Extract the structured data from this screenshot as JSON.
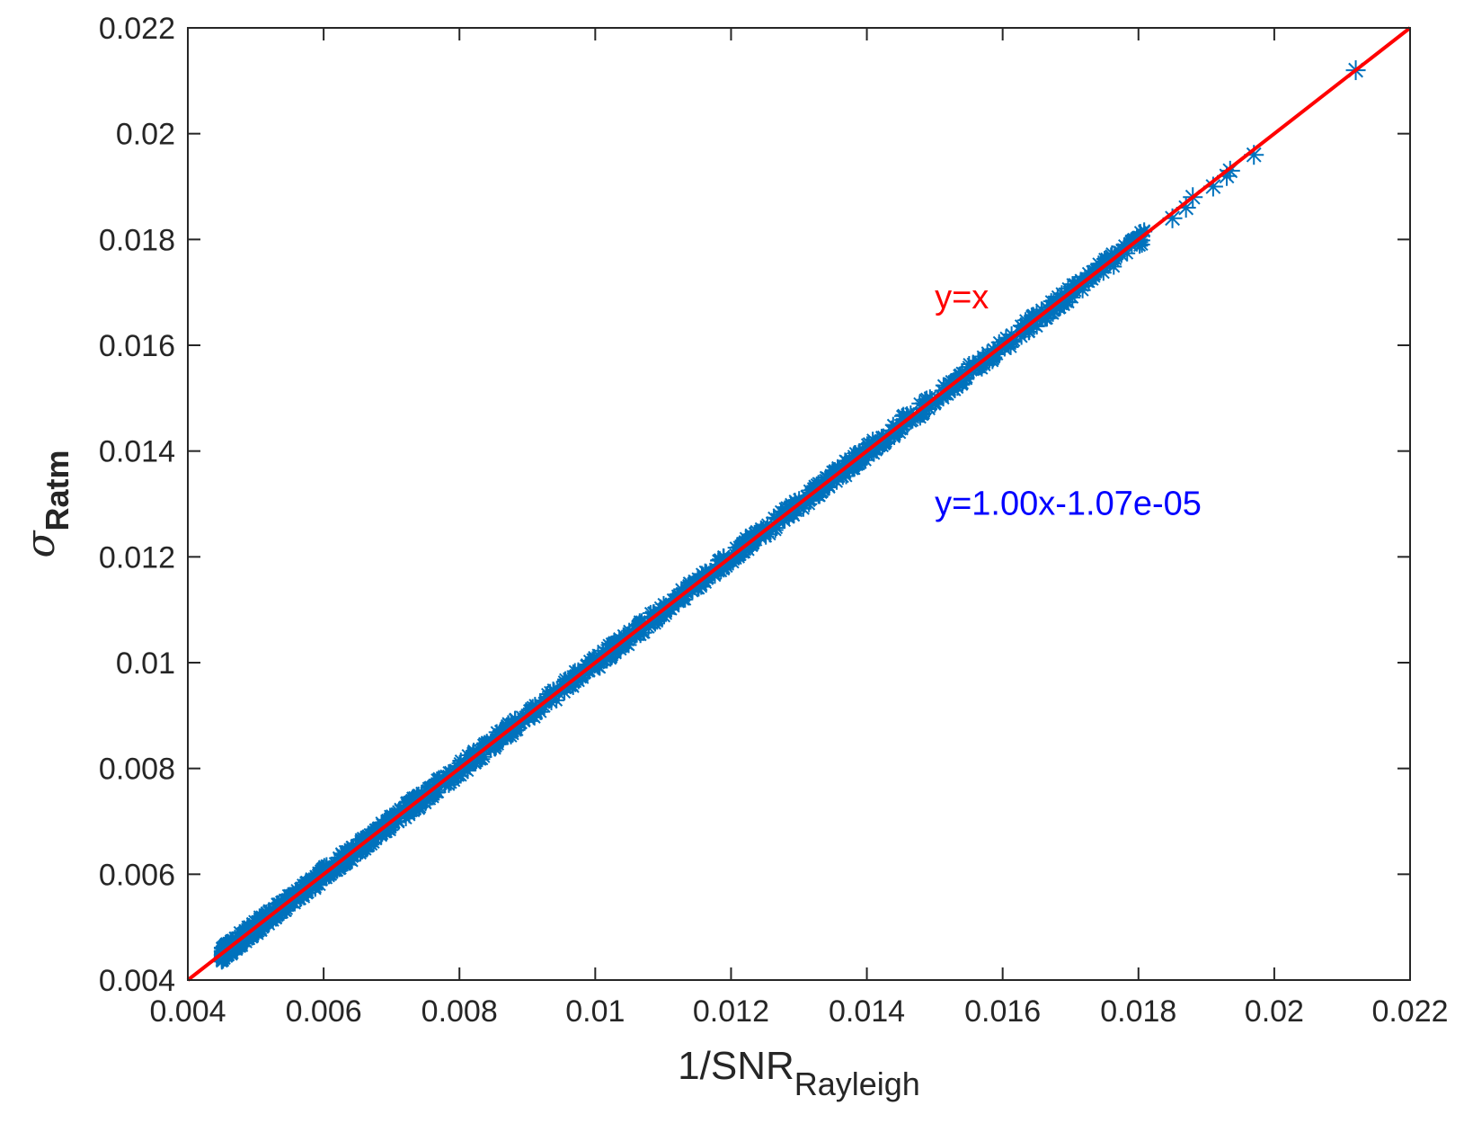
{
  "chart_data": {
    "type": "scatter",
    "xlabel": {
      "main": "1/SNR",
      "sub": "Rayleigh"
    },
    "ylabel": {
      "main": "σ",
      "sub": "Ratm"
    },
    "xlim": [
      0.004,
      0.022
    ],
    "ylim": [
      0.004,
      0.022
    ],
    "xticks": [
      "0.004",
      "0.006",
      "0.008",
      "0.01",
      "0.012",
      "0.014",
      "0.016",
      "0.018",
      "0.02",
      "0.022"
    ],
    "yticks": [
      "0.004",
      "0.006",
      "0.008",
      "0.01",
      "0.012",
      "0.014",
      "0.016",
      "0.018",
      "0.02",
      "0.022"
    ],
    "grid": false,
    "colors": {
      "points": "#0072BD",
      "reference_line": "#FF0000",
      "fit_text": "#0000FF",
      "axes": "#262626"
    },
    "reference_line": {
      "slope": 1,
      "intercept": 0
    },
    "fit": {
      "slope": 1.0,
      "intercept": -1.07e-05
    },
    "marker": "asterisk",
    "dense_range": {
      "x_start": 0.0045,
      "x_end": 0.0181
    },
    "sparse_points": [
      {
        "x": 0.0185,
        "y": 0.0184
      },
      {
        "x": 0.0187,
        "y": 0.0186
      },
      {
        "x": 0.0188,
        "y": 0.0188
      },
      {
        "x": 0.0191,
        "y": 0.019
      },
      {
        "x": 0.0193,
        "y": 0.0192
      },
      {
        "x": 0.01935,
        "y": 0.0193
      },
      {
        "x": 0.0197,
        "y": 0.0196
      },
      {
        "x": 0.0212,
        "y": 0.0212
      }
    ],
    "annotations": [
      {
        "text": "y=x",
        "x": 0.015,
        "y": 0.0167,
        "color": "#FF0000"
      },
      {
        "text": "y=1.00x-1.07e-05",
        "x": 0.015,
        "y": 0.0128,
        "color": "#0000FF"
      }
    ]
  }
}
